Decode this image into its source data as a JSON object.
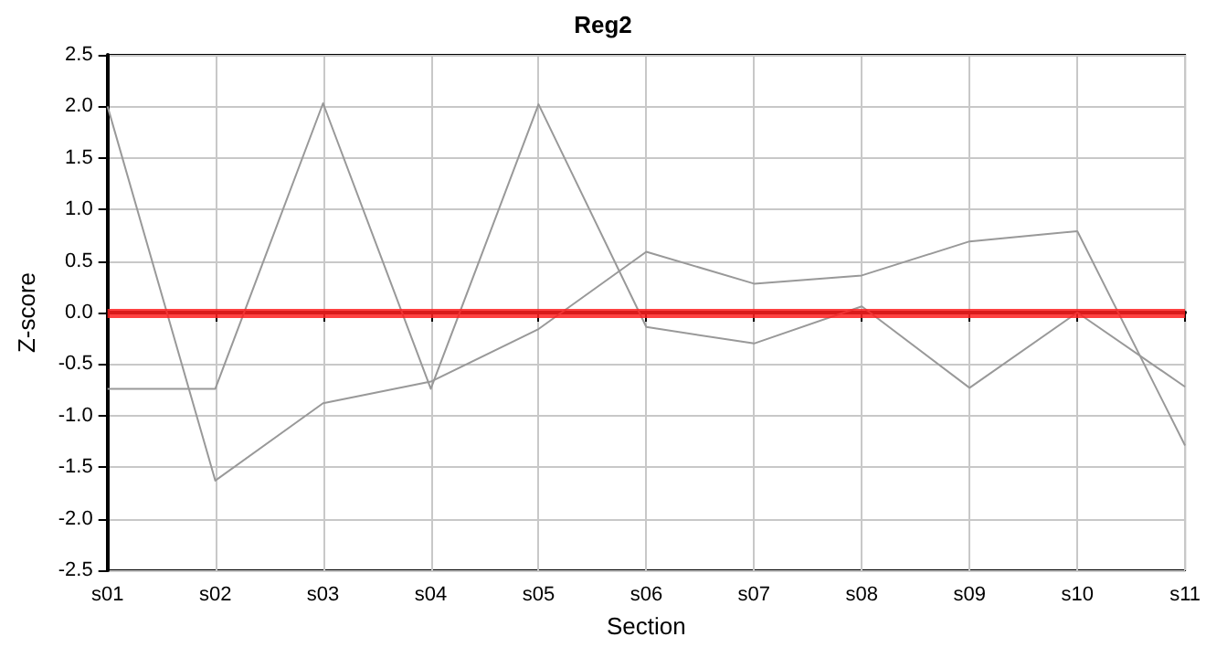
{
  "chart_data": {
    "type": "line",
    "title": "Reg2",
    "xlabel": "Section",
    "ylabel": "Z-score",
    "categories": [
      "s01",
      "s02",
      "s03",
      "s04",
      "s05",
      "s06",
      "s07",
      "s08",
      "s09",
      "s10",
      "s11"
    ],
    "series": [
      {
        "color": "#999999",
        "values": [
          2.0,
          -1.63,
          -0.88,
          -0.67,
          -0.16,
          0.59,
          0.28,
          0.36,
          0.69,
          0.79,
          -1.29
        ]
      },
      {
        "color": "#999999",
        "values": [
          -0.74,
          -0.74,
          2.03,
          -0.74,
          2.02,
          -0.14,
          -0.3,
          0.06,
          -0.73,
          0.0,
          -0.72
        ]
      }
    ],
    "ylim": [
      -2.5,
      2.5
    ],
    "yticks": [
      -2.5,
      {
        "value": -2,
        "label": "-2.0"
      },
      -1.5,
      {
        "value": -1,
        "label": "-1.0"
      },
      -0.5,
      {
        "value": 0,
        "label": "0.0"
      },
      0.5,
      {
        "value": 1,
        "label": "1.0"
      },
      1.5,
      {
        "value": 2,
        "label": "2.0"
      },
      2.5
    ],
    "ref_lines": [
      {
        "axis": "y",
        "value": 0,
        "color": "#ff2020"
      }
    ],
    "grid": true,
    "marker": "none",
    "line_style": "solid"
  }
}
